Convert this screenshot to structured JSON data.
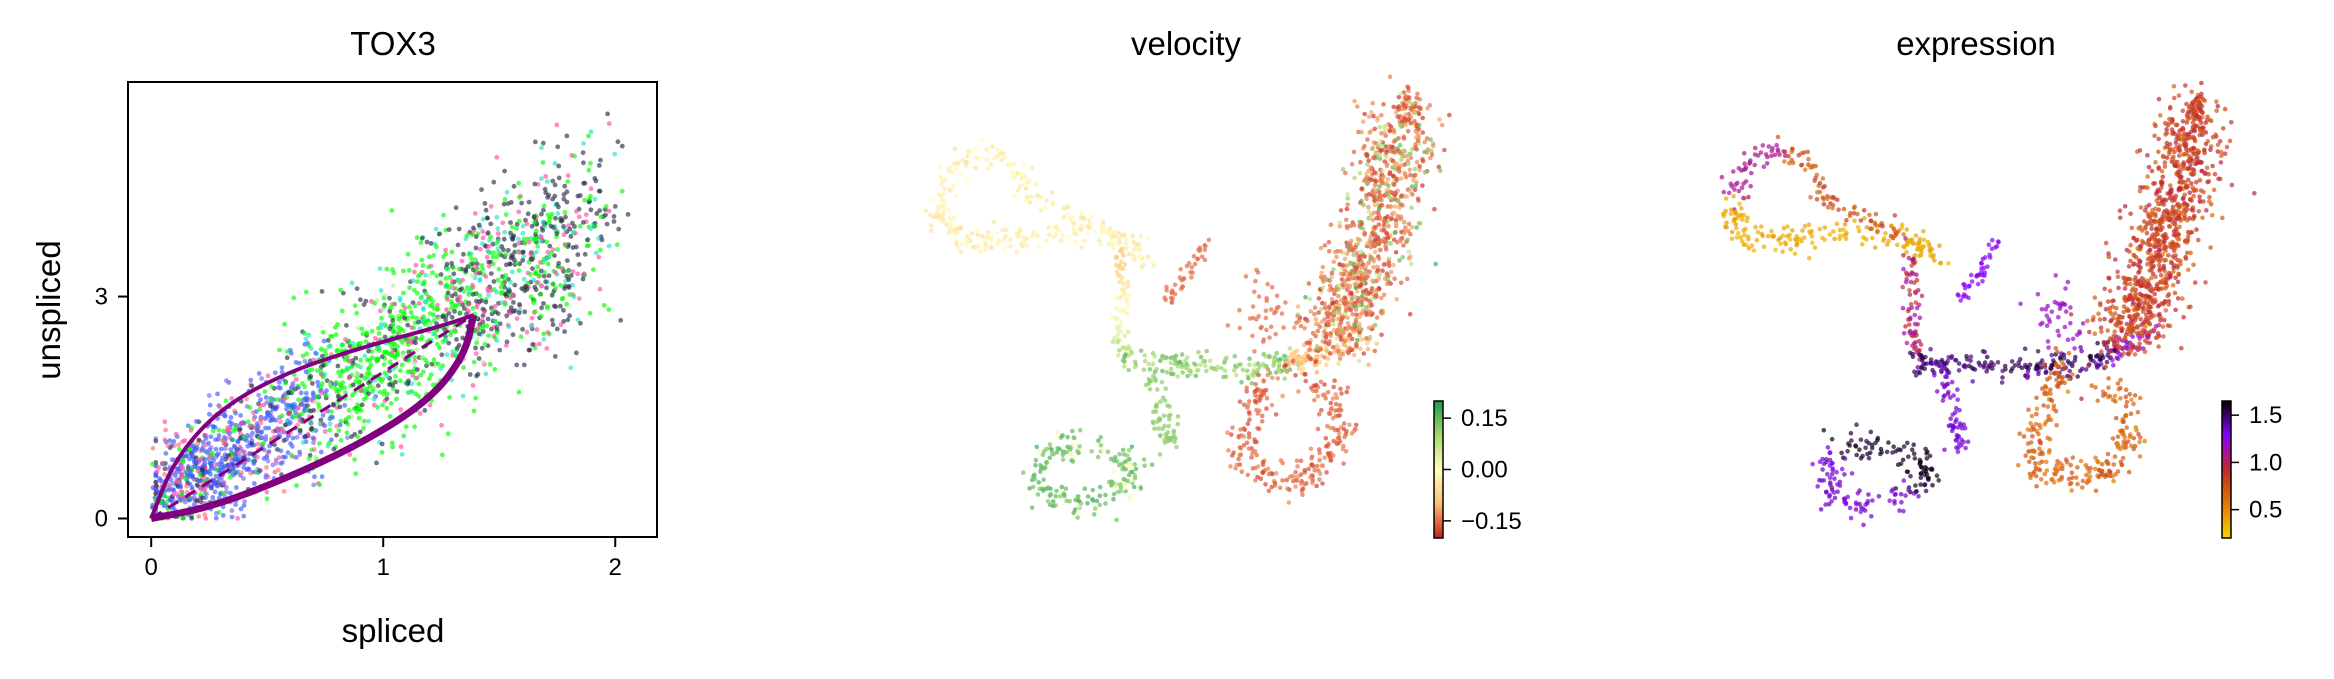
{
  "chart_data": [
    {
      "type": "scatter",
      "title": "TOX3",
      "xlabel": "spliced",
      "ylabel": "unspliced",
      "xlim": [
        -0.1,
        2.18
      ],
      "ylim": [
        -0.25,
        5.9
      ],
      "xticks": [
        "0",
        "1",
        "2"
      ],
      "yticks": [
        "0",
        "3"
      ],
      "grid": false,
      "legend": "none",
      "series": [
        {
          "point_colors": [
            "#00ff00",
            "#2b2e4a",
            "#3c5bff",
            "#ff4da6",
            "#20e3c6",
            "#ff7070",
            "#b7f0a0",
            "#7b68ee"
          ],
          "approx_points": [
            [
              0.2,
              0.4
            ],
            [
              0.35,
              0.8
            ],
            [
              0.5,
              1.1
            ],
            [
              0.65,
              1.3
            ],
            [
              0.8,
              1.7
            ],
            [
              1.0,
              2.0
            ],
            [
              1.1,
              2.4
            ],
            [
              1.25,
              2.9
            ],
            [
              1.4,
              3.3
            ],
            [
              1.55,
              3.6
            ],
            [
              1.7,
              4.0
            ],
            [
              1.85,
              4.3
            ],
            [
              0.9,
              2.6
            ],
            [
              1.2,
              3.8
            ],
            [
              1.4,
              4.2
            ]
          ]
        }
      ],
      "fit_curve": {
        "color": "#800080",
        "upper_branch": [
          [
            0,
            0
          ],
          [
            0.1,
            0.8
          ],
          [
            0.3,
            1.5
          ],
          [
            0.6,
            2.0
          ],
          [
            0.95,
            2.35
          ],
          [
            1.25,
            2.6
          ],
          [
            1.39,
            2.75
          ]
        ],
        "lower_branch": [
          [
            1.39,
            2.75
          ],
          [
            1.35,
            2.2
          ],
          [
            1.2,
            1.6
          ],
          [
            0.9,
            1.0
          ],
          [
            0.55,
            0.5
          ],
          [
            0.25,
            0.15
          ],
          [
            0,
            0
          ]
        ],
        "steady_state_line": [
          [
            0,
            0
          ],
          [
            1.39,
            2.75
          ]
        ]
      }
    },
    {
      "type": "scatter",
      "title": "velocity",
      "colorbar": {
        "ticks": [
          "0.15",
          "0.00",
          "−0.15"
        ],
        "tick_values": [
          0.15,
          0.0,
          -0.15
        ],
        "range": [
          -0.2,
          0.2
        ],
        "colormap": [
          "#c81d1d",
          "#fdbf6f",
          "#ffffbf",
          "#a6d96a",
          "#1a9850"
        ]
      },
      "series": [
        {
          "name": "",
          "value": 0.15,
          "approx_fraction": 0.25
        },
        {
          "name": "",
          "value": 0.0,
          "approx_fraction": 0.15
        },
        {
          "name": "",
          "value": -0.15,
          "approx_fraction": 0.6
        }
      ]
    },
    {
      "type": "scatter",
      "title": "expression",
      "colorbar": {
        "ticks": [
          "1.5",
          "1.0",
          "0.5"
        ],
        "tick_values": [
          1.5,
          1.0,
          0.5
        ],
        "range": [
          0.2,
          1.65
        ],
        "colormap": [
          "#f5d300",
          "#e07b00",
          "#c1272d",
          "#8b00ff",
          "#000000"
        ]
      },
      "series": [
        {
          "name": "",
          "value": 0.4,
          "approx_fraction": 0.35
        },
        {
          "name": "",
          "value": 0.8,
          "approx_fraction": 0.4
        },
        {
          "name": "",
          "value": 1.4,
          "approx_fraction": 0.25
        }
      ]
    }
  ]
}
